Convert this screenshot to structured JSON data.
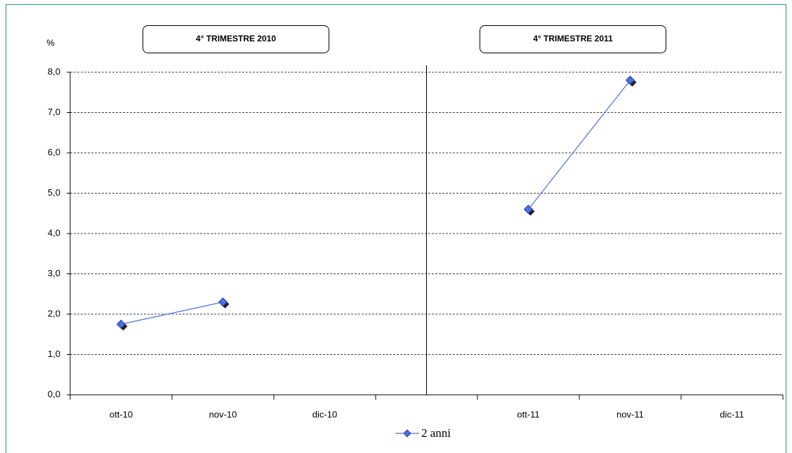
{
  "chart_data": {
    "type": "line",
    "y_label": "%",
    "annotations": [
      "4° TRIMESTRE  2010",
      "4° TRIMESTRE  2011"
    ],
    "categories": [
      "ott-10",
      "nov-10",
      "dic-10",
      null,
      "ott-11",
      "nov-11",
      "dic-11"
    ],
    "series": [
      {
        "name": "2 anni",
        "color": "#4a6fe0",
        "values": [
          1.75,
          2.3,
          null,
          null,
          4.6,
          7.8,
          null
        ]
      }
    ],
    "ylim": [
      0,
      8
    ],
    "yticks": [
      {
        "value": 0,
        "label": "0,0"
      },
      {
        "value": 1,
        "label": "1,0"
      },
      {
        "value": 2,
        "label": "2,0"
      },
      {
        "value": 3,
        "label": "3,0"
      },
      {
        "value": 4,
        "label": "4,0"
      },
      {
        "value": 5,
        "label": "5,0"
      },
      {
        "value": 6,
        "label": "6,0"
      },
      {
        "value": 7,
        "label": "7,0"
      },
      {
        "value": 8,
        "label": "8,0"
      }
    ],
    "grid": true,
    "legend": "bottom"
  }
}
